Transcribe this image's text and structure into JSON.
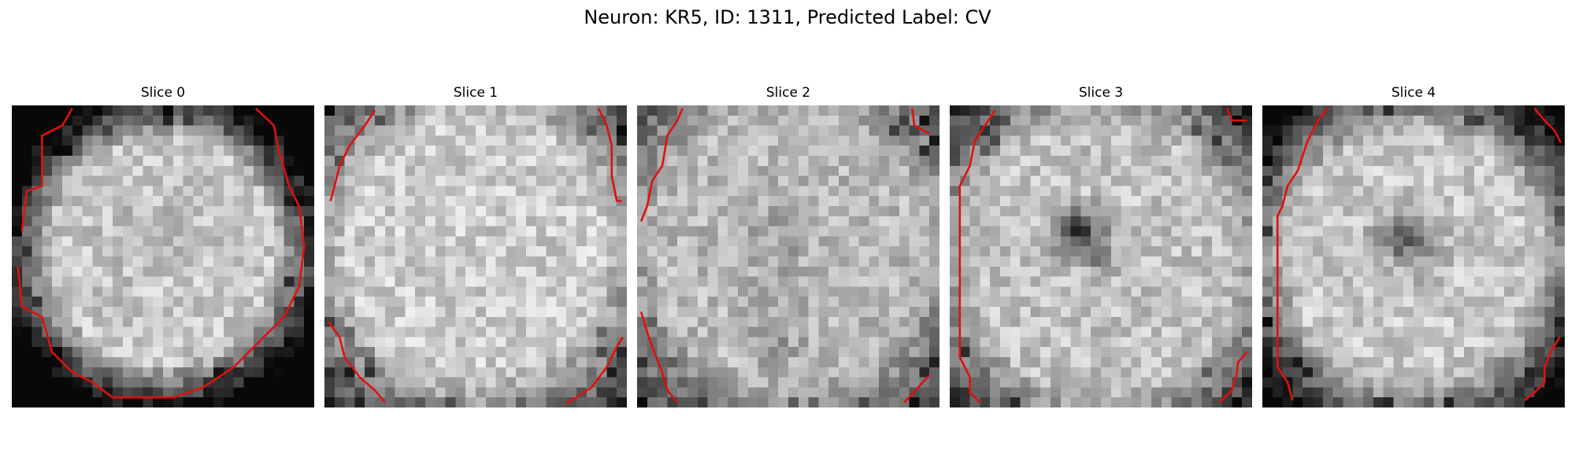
{
  "title": "Neuron: KR5, ID: 1311, Predicted Label: CV",
  "slices": [
    {
      "label": "Slice 0"
    },
    {
      "label": "Slice 1"
    },
    {
      "label": "Slice 2"
    },
    {
      "label": "Slice 3"
    },
    {
      "label": "Slice 4"
    }
  ],
  "colors": {
    "contour": "#e01010",
    "background": "#ffffff"
  }
}
